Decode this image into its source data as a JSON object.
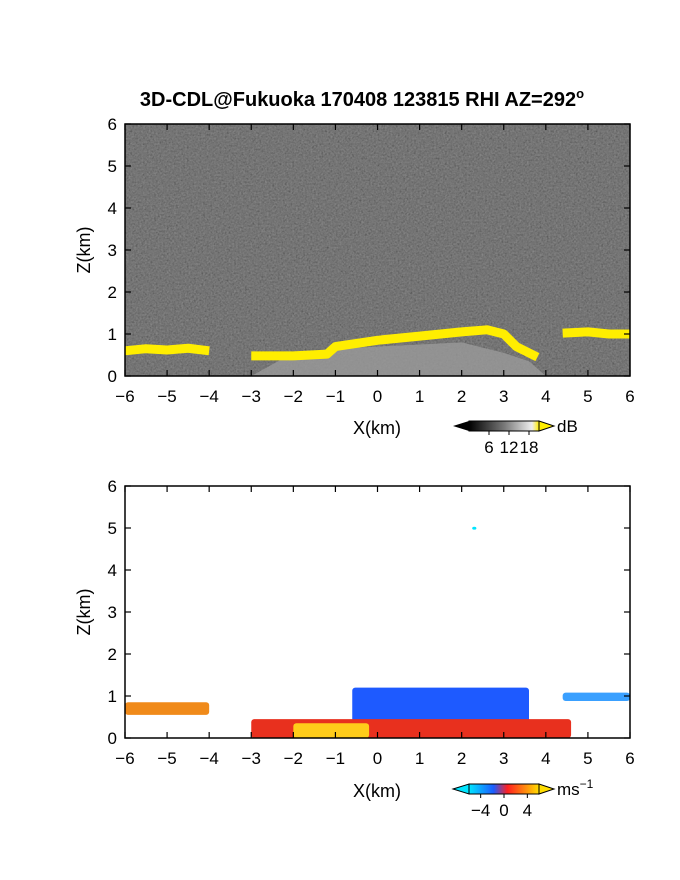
{
  "title": "3D-CDL@Fukuoka 170408 123815 RHI AZ=292",
  "title_superscript": "o",
  "chart_data": [
    {
      "type": "heatmap",
      "name": "snr",
      "xlabel": "X(km)",
      "ylabel": "Z(km)",
      "xlim": [
        -6,
        6
      ],
      "ylim": [
        0,
        6
      ],
      "xticks": [
        "−6",
        "−5",
        "−4",
        "−3",
        "−2",
        "−1",
        "0",
        "1",
        "2",
        "3",
        "4",
        "5",
        "6"
      ],
      "yticks": [
        "0",
        "1",
        "2",
        "3",
        "4",
        "5",
        "6"
      ],
      "background_color": "#1e1e1e",
      "colorbar": {
        "unit": "dB",
        "ticks": [
          "6",
          "12",
          "18"
        ],
        "range": [
          0,
          21
        ],
        "low_color": "#000000",
        "high_color": "#ffee00"
      },
      "layers": [
        {
          "region": "near_surface",
          "color": "#9a9a9a",
          "points": [
            [
              -3,
              0
            ],
            [
              -2,
              0.55
            ],
            [
              -1,
              0.65
            ],
            [
              0,
              0.7
            ],
            [
              1,
              0.75
            ],
            [
              2,
              0.8
            ],
            [
              3,
              0.55
            ],
            [
              3.6,
              0.35
            ],
            [
              4,
              0
            ]
          ]
        },
        {
          "region": "cloud_top_yellow",
          "color": "#ffee00",
          "segments": [
            [
              [
                -6,
                0.6
              ],
              [
                -5.5,
                0.65
              ],
              [
                -5,
                0.62
              ],
              [
                -4.5,
                0.66
              ],
              [
                -4,
                0.6
              ]
            ],
            [
              [
                -3,
                0.48
              ],
              [
                -2,
                0.48
              ],
              [
                -1.2,
                0.52
              ],
              [
                -1,
                0.7
              ],
              [
                0,
                0.85
              ],
              [
                1,
                0.95
              ],
              [
                2,
                1.05
              ],
              [
                2.6,
                1.1
              ],
              [
                3,
                1.0
              ],
              [
                3.3,
                0.7
              ],
              [
                3.8,
                0.45
              ]
            ],
            [
              [
                4.4,
                1.02
              ],
              [
                5,
                1.05
              ],
              [
                5.5,
                1.0
              ],
              [
                6,
                1.0
              ]
            ]
          ]
        }
      ]
    },
    {
      "type": "heatmap",
      "name": "doppler_velocity",
      "xlabel": "X(km)",
      "ylabel": "Z(km)",
      "xlim": [
        -6,
        6
      ],
      "ylim": [
        0,
        6
      ],
      "xticks": [
        "−6",
        "−5",
        "−4",
        "−3",
        "−2",
        "−1",
        "0",
        "1",
        "2",
        "3",
        "4",
        "5",
        "6"
      ],
      "yticks": [
        "0",
        "1",
        "2",
        "3",
        "4",
        "5",
        "6"
      ],
      "background_color": "#ffffff",
      "colorbar": {
        "unit_main": "ms",
        "unit_exp": "−1",
        "ticks": [
          "−4",
          "0",
          "4"
        ],
        "range": [
          -6,
          6
        ],
        "colors": [
          "#00e5ff",
          "#1a5cff",
          "#ff2020",
          "#ffdd00"
        ]
      },
      "regions": [
        {
          "label": "outbound_orange",
          "color": "#f08a1a",
          "x": [
            -6,
            -4
          ],
          "z": [
            0.55,
            0.85
          ]
        },
        {
          "label": "inbound_blue_cloud",
          "color": "#1e5aff",
          "x": [
            -0.6,
            3.6
          ],
          "z": [
            0.15,
            1.2
          ]
        },
        {
          "label": "outbound_red_base",
          "color": "#e8301e",
          "x": [
            -3,
            4.6
          ],
          "z": [
            0,
            0.45
          ]
        },
        {
          "label": "near_radar_yellow",
          "color": "#ffcc1a",
          "x": [
            -2,
            -0.2
          ],
          "z": [
            0,
            0.35
          ]
        },
        {
          "label": "upper_right_lightblue",
          "color": "#3aa0ff",
          "x": [
            4.4,
            6
          ],
          "z": [
            0.88,
            1.08
          ]
        },
        {
          "label": "isolated_cyan",
          "color": "#00e5ff",
          "x": [
            2.25,
            2.35
          ],
          "z": [
            4.96,
            5.03
          ]
        }
      ]
    }
  ]
}
